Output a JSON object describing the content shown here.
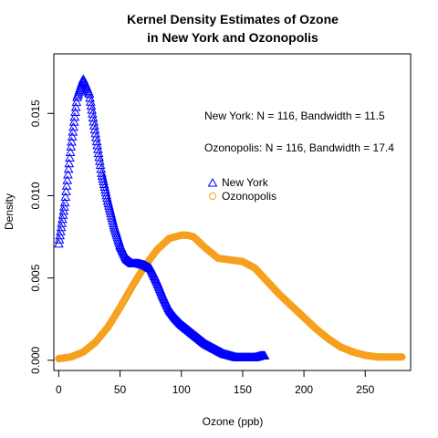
{
  "chart_data": {
    "type": "scatter",
    "title_lines": [
      "Kernel Density Estimates of Ozone",
      "in New York and Ozonopolis"
    ],
    "xlabel": "Ozone (ppb)",
    "ylabel": "Density",
    "xlim": [
      -4,
      287
    ],
    "ylim": [
      -0.00062,
      0.01862
    ],
    "x_ticks": [
      0,
      50,
      100,
      150,
      200,
      250
    ],
    "x_tick_labels": [
      "0",
      "50",
      "100",
      "150",
      "200",
      "250"
    ],
    "y_ticks": [
      0.0,
      0.005,
      0.01,
      0.015
    ],
    "y_tick_labels": [
      "0.000",
      "0.005",
      "0.010",
      "0.015"
    ],
    "annotations": [
      "New York: N = 116, Bandwidth = 11.5",
      "Ozonopolis: N = 116, Bandwidth = 17.4"
    ],
    "legend": {
      "placement": "right-center"
    },
    "series": [
      {
        "name": "New York",
        "color": "#0000ff",
        "marker": "triangle",
        "x": [
          0,
          5,
          10,
          15,
          20,
          25,
          30,
          35,
          40,
          45,
          50,
          55,
          60,
          65,
          70,
          75,
          80,
          85,
          90,
          95,
          100,
          105,
          110,
          115,
          120,
          125,
          130,
          135,
          140,
          145,
          150,
          155,
          160,
          165,
          168
        ],
        "y": [
          0.0071,
          0.0096,
          0.013,
          0.016,
          0.0171,
          0.0162,
          0.0138,
          0.0114,
          0.0097,
          0.0082,
          0.007,
          0.0062,
          0.0059,
          0.0059,
          0.0058,
          0.0056,
          0.0048,
          0.0039,
          0.0031,
          0.0026,
          0.0022,
          0.0019,
          0.0016,
          0.0013,
          0.001,
          0.0008,
          0.0006,
          0.0004,
          0.0003,
          0.0002,
          0.0002,
          0.0002,
          0.0002,
          0.0003,
          0.0003
        ]
      },
      {
        "name": "Ozonopolis",
        "color": "#f7a01e",
        "marker": "circle",
        "x": [
          0,
          10,
          20,
          30,
          40,
          50,
          60,
          70,
          80,
          90,
          100,
          105,
          110,
          120,
          130,
          140,
          150,
          160,
          170,
          180,
          190,
          200,
          210,
          220,
          230,
          240,
          250,
          260,
          270,
          280
        ],
        "y": [
          0.0001,
          0.0002,
          0.0005,
          0.0011,
          0.002,
          0.0032,
          0.0045,
          0.0057,
          0.0067,
          0.0074,
          0.0076,
          0.0076,
          0.0075,
          0.0068,
          0.0062,
          0.0061,
          0.006,
          0.0056,
          0.0048,
          0.004,
          0.0033,
          0.0026,
          0.0019,
          0.0013,
          0.0008,
          0.0005,
          0.0003,
          0.0002,
          0.0002,
          0.0002
        ]
      }
    ]
  }
}
